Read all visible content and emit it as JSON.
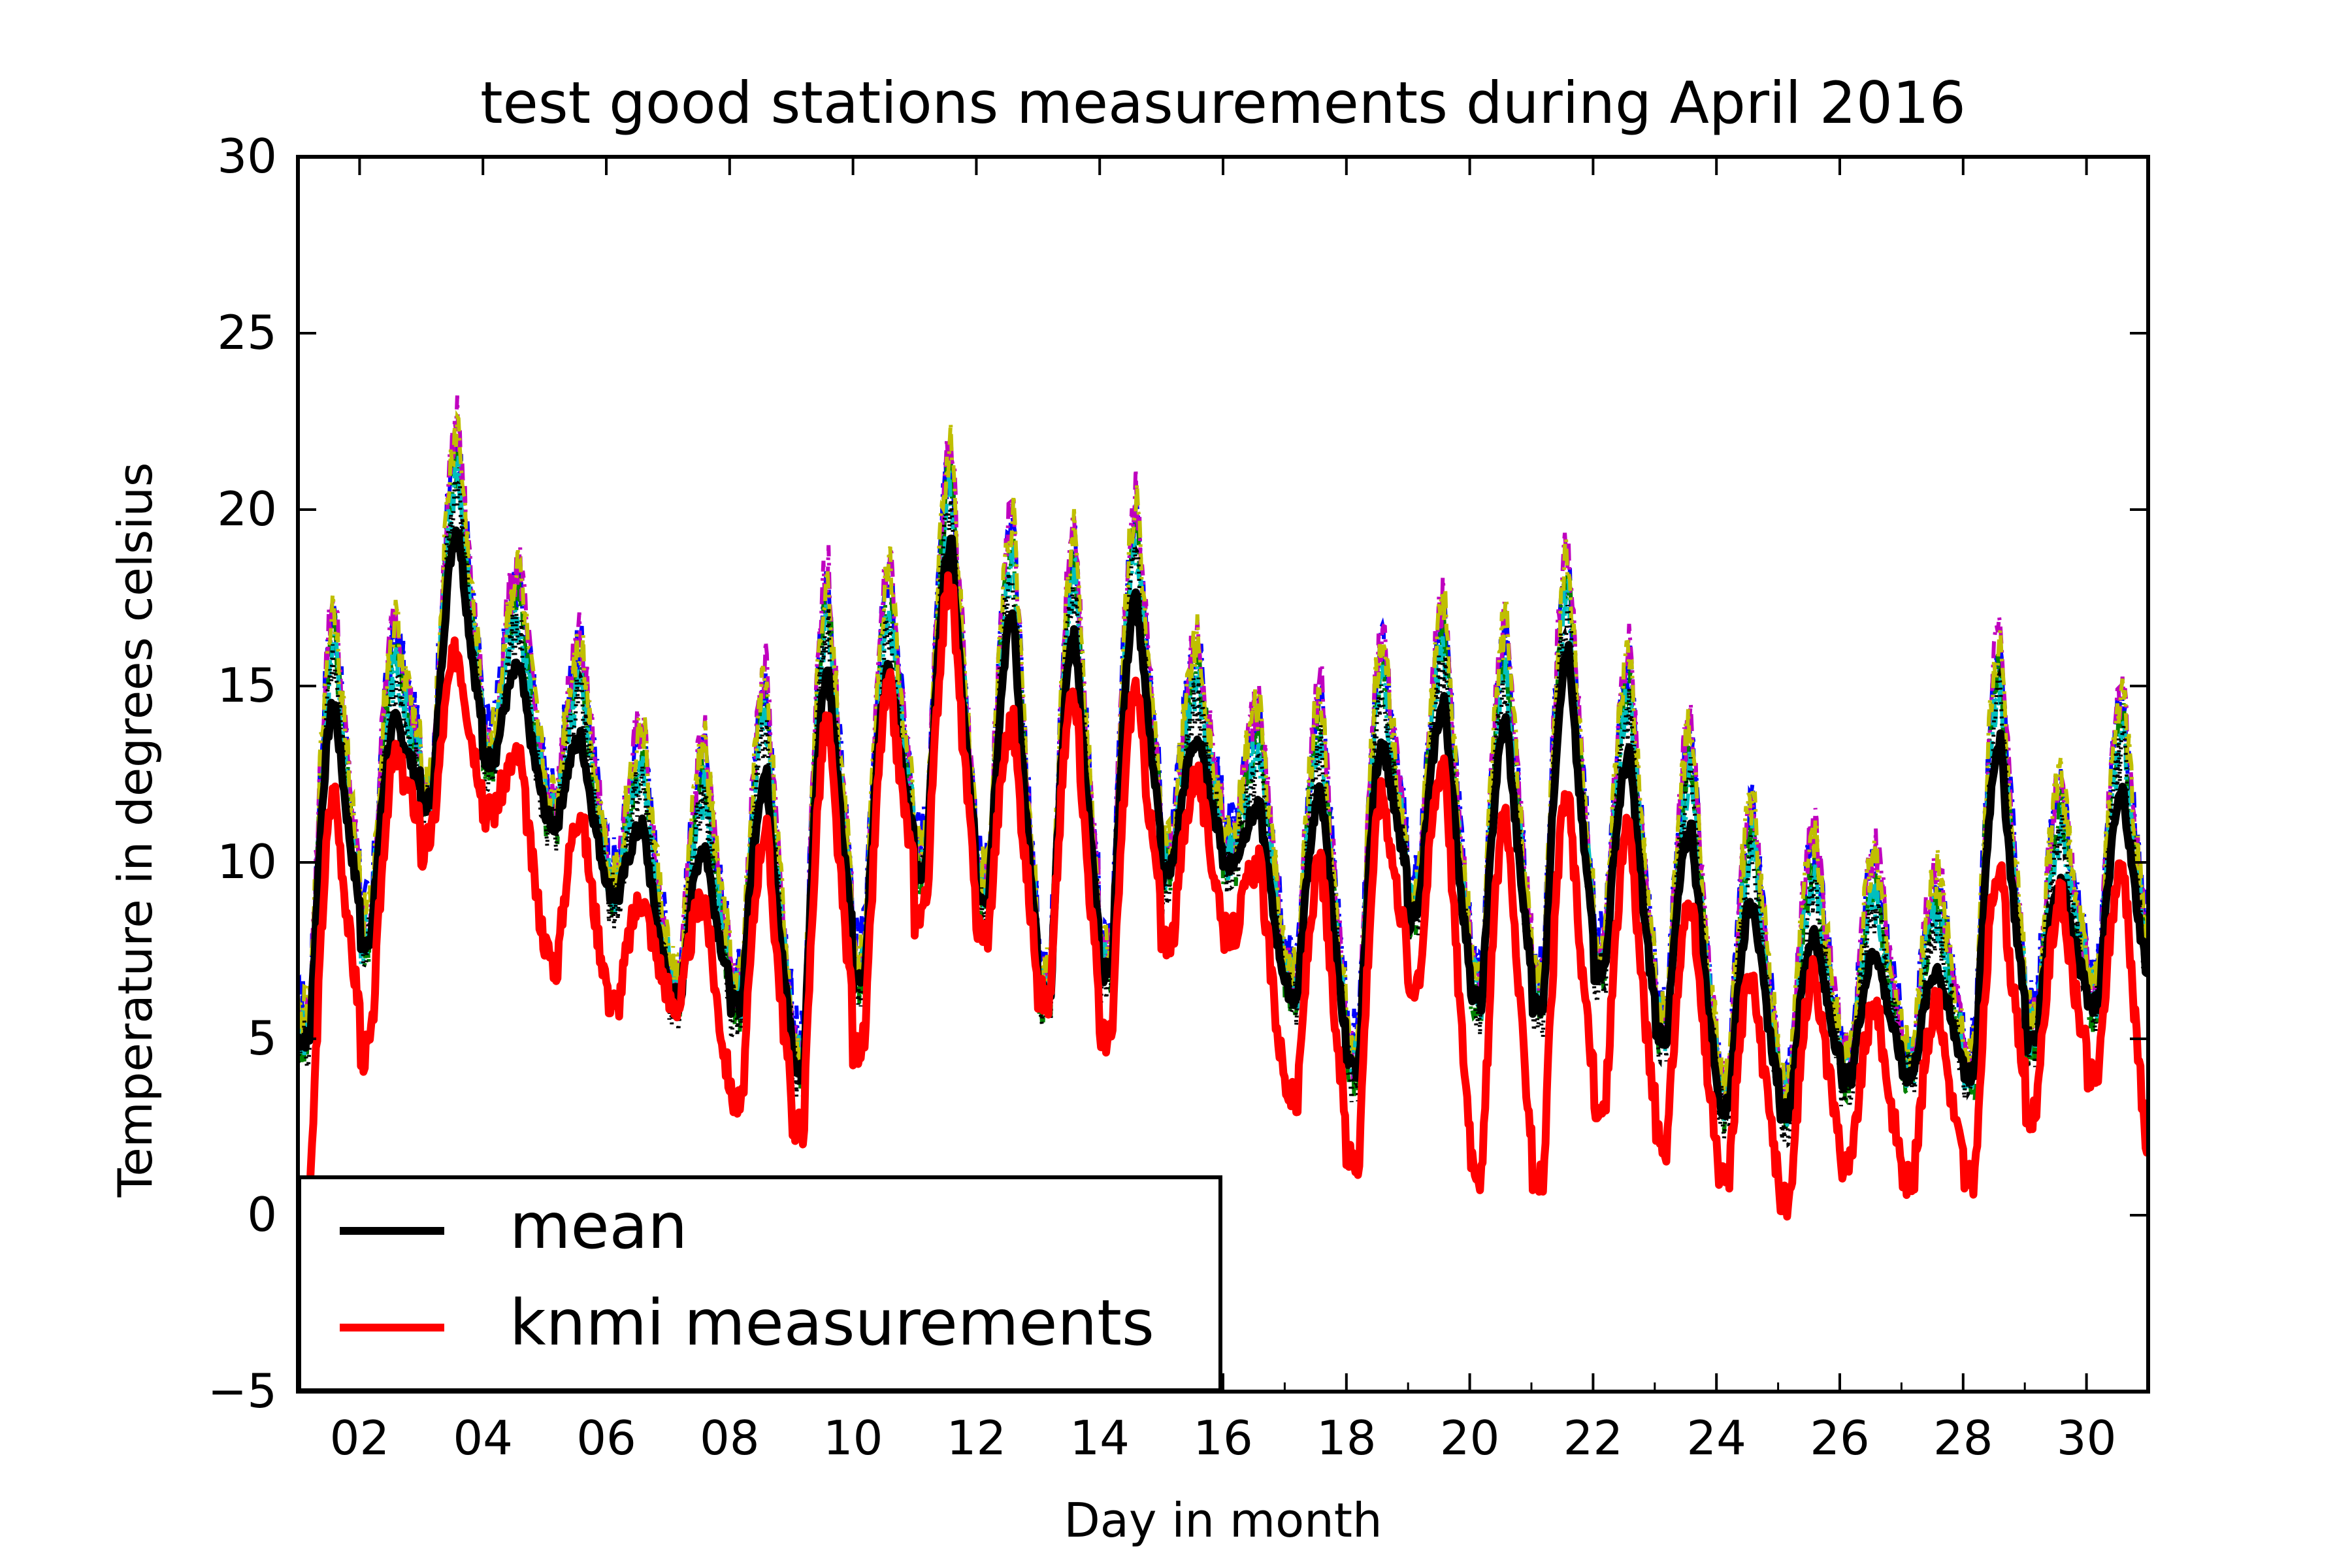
{
  "chart_data": {
    "type": "line",
    "title": "test good stations measurements during April 2016",
    "xlabel": "Day in month",
    "ylabel": "Temperature in degrees celsius",
    "xlim": [
      1,
      31
    ],
    "ylim": [
      -5,
      30
    ],
    "xticks": [
      {
        "value": 2,
        "label": "02"
      },
      {
        "value": 4,
        "label": "04"
      },
      {
        "value": 6,
        "label": "06"
      },
      {
        "value": 8,
        "label": "08"
      },
      {
        "value": 10,
        "label": "10"
      },
      {
        "value": 12,
        "label": "12"
      },
      {
        "value": 14,
        "label": "14"
      },
      {
        "value": 16,
        "label": "16"
      },
      {
        "value": 18,
        "label": "18"
      },
      {
        "value": 20,
        "label": "20"
      },
      {
        "value": 22,
        "label": "22"
      },
      {
        "value": 24,
        "label": "24"
      },
      {
        "value": 26,
        "label": "26"
      },
      {
        "value": 28,
        "label": "28"
      },
      {
        "value": 30,
        "label": "30"
      }
    ],
    "yticks": [
      {
        "value": -5,
        "label": "−5"
      },
      {
        "value": 0,
        "label": "0"
      },
      {
        "value": 5,
        "label": "5"
      },
      {
        "value": 10,
        "label": "10"
      },
      {
        "value": 15,
        "label": "15"
      },
      {
        "value": 20,
        "label": "20"
      },
      {
        "value": 25,
        "label": "25"
      },
      {
        "value": 30,
        "label": "30"
      }
    ],
    "grid": false,
    "legend": {
      "position": "lower-left",
      "entries": [
        "mean",
        "knmi measurements"
      ]
    },
    "daily": {
      "days": [
        1,
        2,
        3,
        4,
        5,
        6,
        7,
        8,
        9,
        10,
        11,
        12,
        13,
        14,
        15,
        16,
        17,
        18,
        19,
        20,
        21,
        22,
        23,
        24,
        25,
        26,
        27,
        28,
        29,
        30,
        31
      ],
      "mean_min": [
        5,
        8,
        12,
        13,
        11,
        9,
        6,
        6,
        4,
        7,
        10,
        9,
        6,
        7,
        10,
        10,
        6,
        4,
        9,
        6,
        6,
        7,
        5,
        3,
        3,
        4,
        4,
        4,
        5,
        6,
        6
      ],
      "mean_max": [
        14.5,
        14,
        19.5,
        15.5,
        13.5,
        11,
        10.5,
        12.5,
        15.5,
        15.5,
        19,
        17,
        16.5,
        17.5,
        13.5,
        11.5,
        12,
        13.5,
        14.5,
        14,
        16,
        13,
        11,
        9,
        8,
        7.5,
        7,
        13.5,
        9.5,
        12,
        12
      ],
      "knmi_min": [
        0.5,
        5,
        11,
        11.5,
        7,
        6,
        6,
        3,
        2.5,
        5,
        9,
        8,
        6,
        5,
        8,
        8,
        3,
        1.5,
        7,
        1,
        1,
        3,
        2,
        1,
        0.3,
        1.5,
        1,
        1,
        3,
        4,
        0.5
      ],
      "knmi_max": [
        12,
        13,
        16,
        13,
        11.5,
        9,
        9,
        11,
        14,
        15,
        18,
        14,
        15,
        15,
        12.5,
        10,
        10,
        12,
        13,
        11.5,
        12,
        11,
        9,
        7,
        7,
        6,
        6,
        10,
        9,
        10,
        10
      ]
    },
    "series": [
      {
        "name": "mean",
        "color": "#000000",
        "style": "solid"
      },
      {
        "name": "knmi measurements",
        "color": "#ff0000",
        "style": "solid"
      },
      {
        "color": "#0000ff",
        "style": "dashdot"
      },
      {
        "color": "#008000",
        "style": "dashdot"
      },
      {
        "color": "#bf00bf",
        "style": "dashdot"
      },
      {
        "color": "#00bfbf",
        "style": "dashdot"
      },
      {
        "color": "#bfbf00",
        "style": "dashdot"
      },
      {
        "color": "#000000",
        "style": "dotted"
      }
    ]
  }
}
